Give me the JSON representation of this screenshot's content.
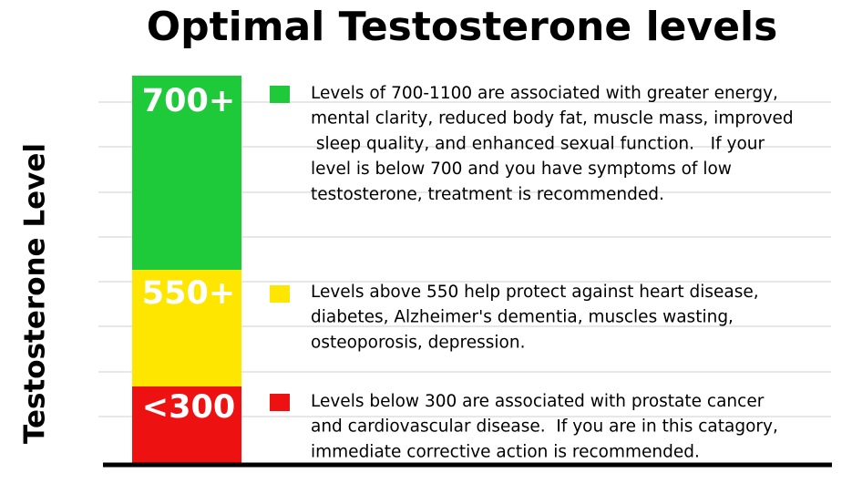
{
  "title": "Optimal Testosterone levels",
  "y_axis_label": "Testosterone Level",
  "zones": [
    {
      "label": "700+",
      "color": "#1ec93a",
      "description": [
        "Levels of 700-1100 are associated with greater energy,",
        "mental clarity, reduced body fat, muscle mass, improved",
        " sleep quality, and enhanced sexual function.   If your",
        "level is below 700 and you have symptoms of low",
        "testosterone, treatment is recommended."
      ]
    },
    {
      "label": "550+",
      "color": "#ffe600",
      "description": [
        "Levels above 550 help protect against heart disease,",
        "diabetes, Alzheimer's dementia, muscles wasting,",
        "osteoporosis, depression."
      ]
    },
    {
      "label": "<300",
      "color": "#ee1111",
      "description": [
        "Levels below 300 are associated with prostate cancer",
        "and cardiovascular disease.  If you are in this catagory,",
        "immediate corrective action is recommended."
      ]
    }
  ]
}
